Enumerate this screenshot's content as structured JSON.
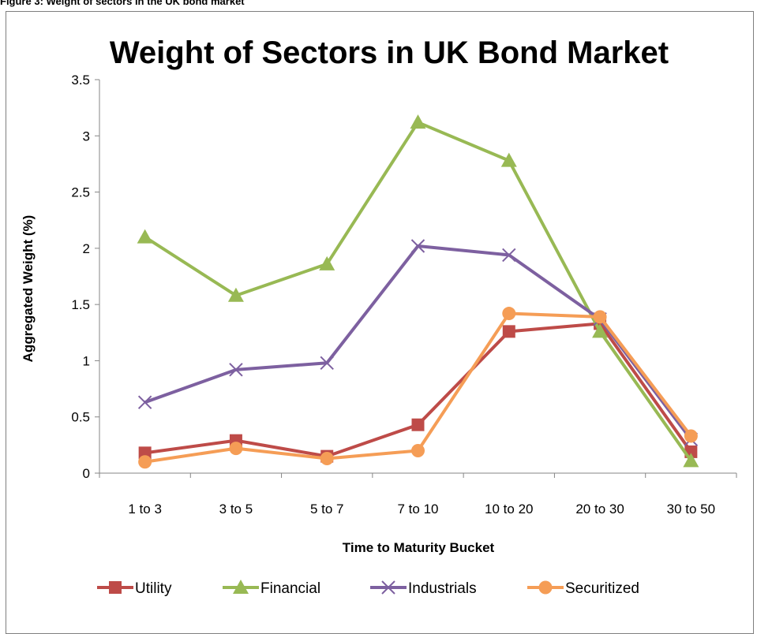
{
  "figure_caption": "Figure 3: Weight of sectors in the UK bond market",
  "chart_data": {
    "type": "line",
    "title": "Weight of Sectors in UK Bond Market",
    "xlabel": "Time to Maturity Bucket",
    "ylabel": "Aggregated Weight (%)",
    "categories": [
      "1 to 3",
      "3 to 5",
      "5 to 7",
      "7 to 10",
      "10 to 20",
      "20 to 30",
      "30 to 50"
    ],
    "ylim": [
      0,
      3.5
    ],
    "yticks": [
      "0",
      "0.5",
      "1",
      "1.5",
      "2",
      "2.5",
      "3",
      "3.5"
    ],
    "grid": false,
    "legend": "bottom",
    "series": [
      {
        "name": "Utility",
        "marker": "square",
        "color": "#be4b48",
        "values": [
          0.18,
          0.29,
          0.15,
          0.43,
          1.26,
          1.33,
          0.19
        ]
      },
      {
        "name": "Financial",
        "marker": "triangle",
        "color": "#98b954",
        "values": [
          2.1,
          1.58,
          1.86,
          3.12,
          2.78,
          1.26,
          0.11
        ]
      },
      {
        "name": "Industrials",
        "marker": "x",
        "color": "#7d60a0",
        "values": [
          0.63,
          0.92,
          0.98,
          2.02,
          1.94,
          1.37,
          0.3
        ]
      },
      {
        "name": "Securitized",
        "marker": "circle",
        "color": "#f59d56",
        "values": [
          0.1,
          0.22,
          0.13,
          0.2,
          1.42,
          1.39,
          0.33
        ]
      }
    ]
  }
}
